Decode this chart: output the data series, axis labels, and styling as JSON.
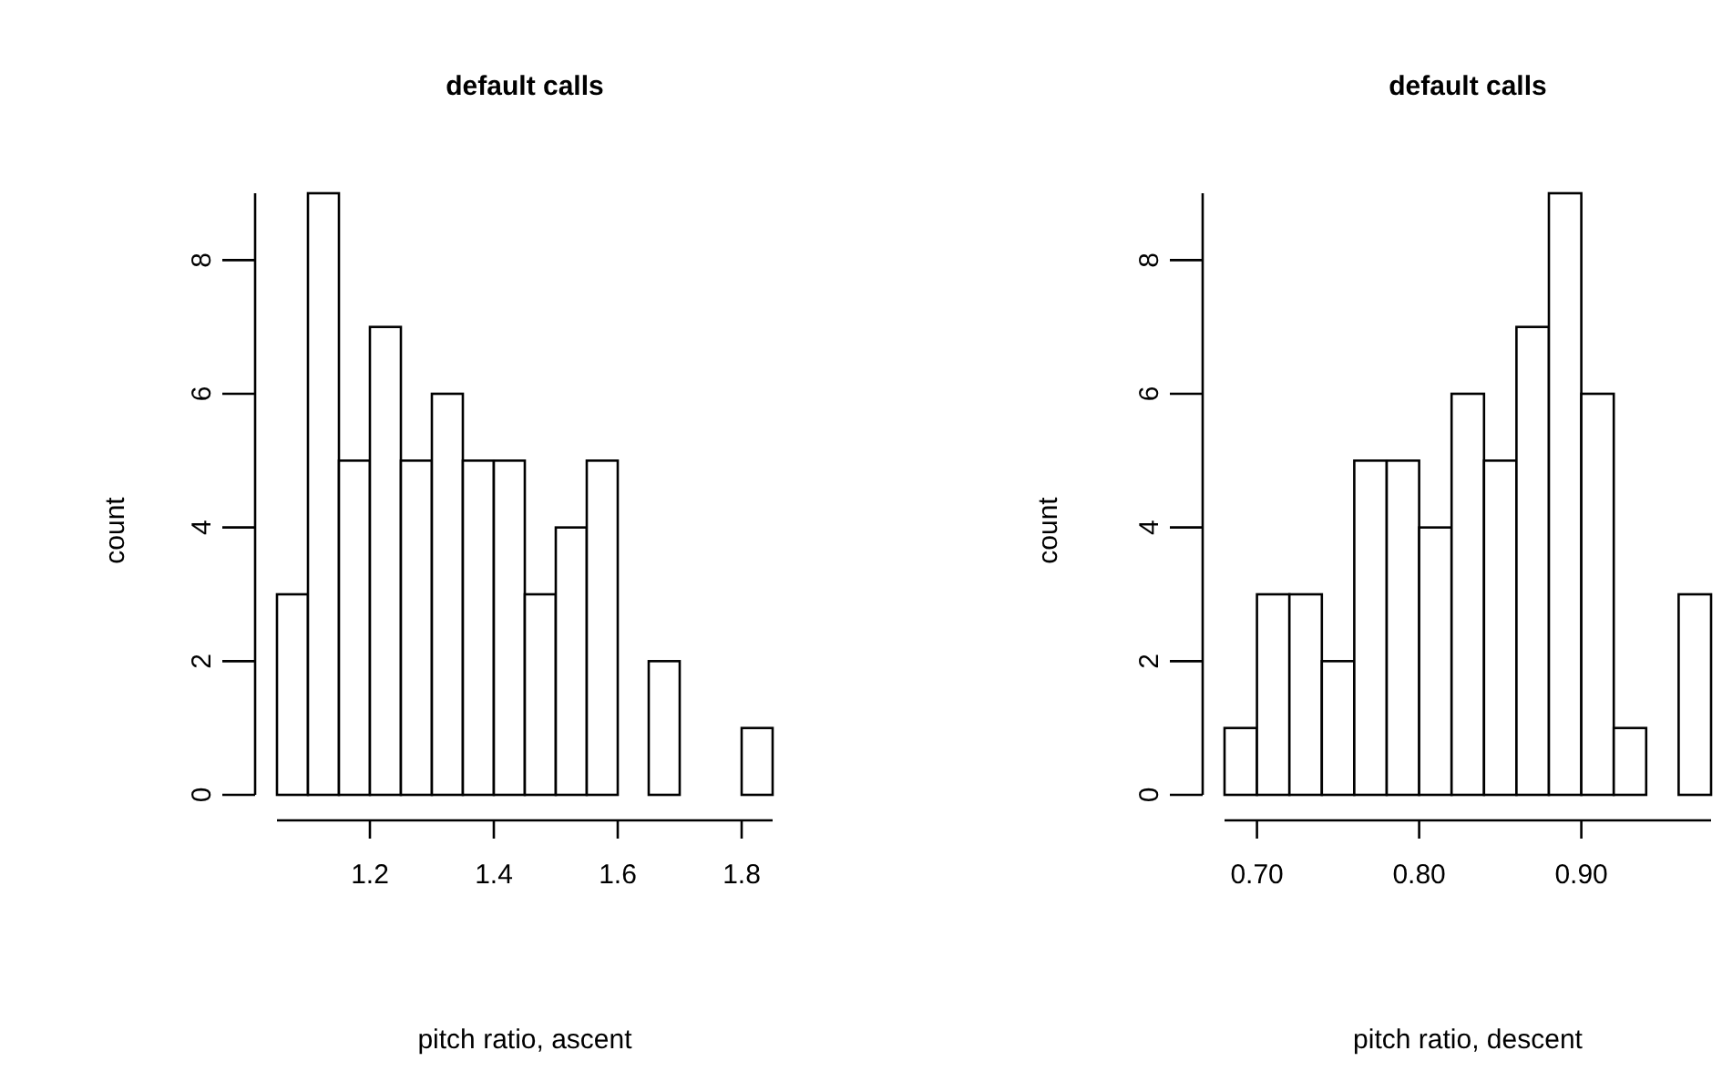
{
  "chart_data": [
    {
      "type": "histogram",
      "title": "default calls",
      "xlabel": "pitch ratio, ascent",
      "ylabel": "count",
      "bins": [
        1.05,
        1.1,
        1.15,
        1.2,
        1.25,
        1.3,
        1.35,
        1.4,
        1.45,
        1.5,
        1.55,
        1.6,
        1.65,
        1.7,
        1.75,
        1.8,
        1.85
      ],
      "values": [
        3,
        9,
        5,
        7,
        5,
        6,
        5,
        5,
        3,
        4,
        5,
        0,
        2,
        0,
        0,
        1
      ],
      "color": "#ffffff",
      "xlim": [
        1.05,
        1.85
      ],
      "ylim": [
        0,
        9
      ],
      "xticks": [
        1.2,
        1.4,
        1.6,
        1.8
      ],
      "yticks": [
        0,
        2,
        4,
        6,
        8
      ],
      "grid": false
    },
    {
      "type": "histogram",
      "title": "default calls",
      "xlabel": "pitch ratio, descent",
      "ylabel": "count",
      "bins": [
        0.68,
        0.7,
        0.72,
        0.74,
        0.76,
        0.78,
        0.8,
        0.82,
        0.84,
        0.86,
        0.88,
        0.9,
        0.92,
        0.94,
        0.96,
        0.98
      ],
      "values": [
        1,
        3,
        3,
        2,
        5,
        5,
        4,
        6,
        5,
        7,
        9,
        6,
        1,
        0,
        3
      ],
      "color": "#ffffff",
      "xlim": [
        0.68,
        0.98
      ],
      "ylim": [
        0,
        9
      ],
      "xticks": [
        {
          "value": 0.7,
          "label": "0.70"
        },
        {
          "value": 0.8,
          "label": "0.80"
        },
        {
          "value": 0.9,
          "label": "0.90"
        }
      ],
      "yticks": [
        0,
        2,
        4,
        6,
        8
      ],
      "grid": false
    }
  ]
}
